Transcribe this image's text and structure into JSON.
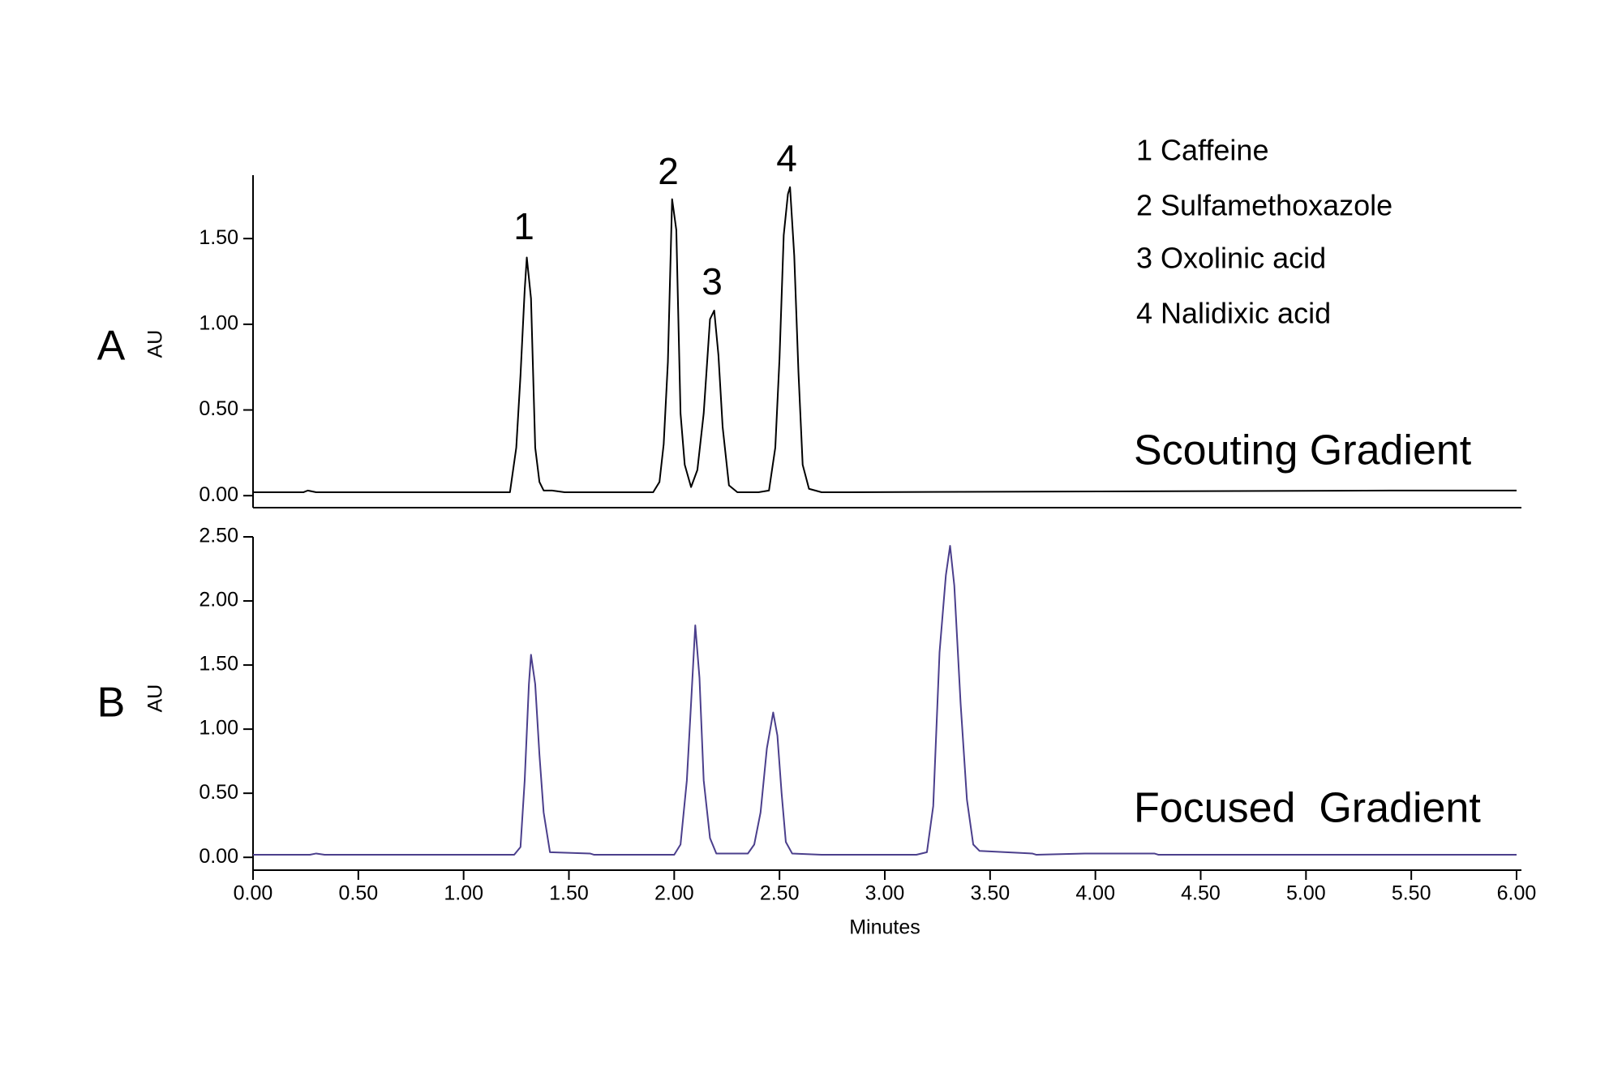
{
  "chart_data": [
    {
      "type": "line",
      "panel_label": "A",
      "ylabel": "AU",
      "annotation": "Scouting Gradient",
      "peak_labels": [
        "1",
        "2",
        "3",
        "4"
      ],
      "legend_items": [
        "1 Caffeine",
        "2 Sulfamethoxazole",
        "3 Oxolinic acid",
        "4 Nalidixic acid"
      ],
      "x": [
        0,
        0.24,
        0.26,
        0.3,
        1.22,
        1.25,
        1.27,
        1.29,
        1.3,
        1.32,
        1.34,
        1.36,
        1.38,
        1.42,
        1.48,
        1.9,
        1.93,
        1.95,
        1.97,
        1.99,
        2.01,
        2.03,
        2.05,
        2.08,
        2.11,
        2.14,
        2.17,
        2.19,
        2.21,
        2.23,
        2.26,
        2.3,
        2.4,
        2.45,
        2.48,
        2.5,
        2.52,
        2.54,
        2.55,
        2.57,
        2.59,
        2.61,
        2.64,
        2.7,
        2.82,
        5.4,
        6.0
      ],
      "series": [
        {
          "color": "#000000",
          "values": [
            0.02,
            0.02,
            0.03,
            0.02,
            0.02,
            0.28,
            0.7,
            1.2,
            1.39,
            1.15,
            0.28,
            0.08,
            0.03,
            0.03,
            0.02,
            0.02,
            0.08,
            0.3,
            0.78,
            1.73,
            1.55,
            0.48,
            0.18,
            0.05,
            0.15,
            0.48,
            1.03,
            1.08,
            0.82,
            0.4,
            0.06,
            0.02,
            0.02,
            0.03,
            0.28,
            0.8,
            1.52,
            1.76,
            1.8,
            1.4,
            0.72,
            0.18,
            0.04,
            0.02,
            0.02,
            0.03,
            0.03
          ]
        }
      ],
      "xlim": [
        0,
        6
      ],
      "ylim": [
        -0.07,
        1.87
      ],
      "yticks": [
        {
          "value": 0,
          "label": "0.00"
        },
        {
          "value": 0.5,
          "label": "0.50"
        },
        {
          "value": 1,
          "label": "1.00"
        },
        {
          "value": 1.5,
          "label": "1.50"
        }
      ]
    },
    {
      "type": "line",
      "panel_label": "B",
      "ylabel": "AU",
      "annotation": "Focused  Gradient",
      "xlabel": "Minutes",
      "x": [
        0,
        0.27,
        0.3,
        0.34,
        1.24,
        1.27,
        1.29,
        1.31,
        1.32,
        1.34,
        1.36,
        1.38,
        1.41,
        1.6,
        1.62,
        2.0,
        2.03,
        2.06,
        2.08,
        2.1,
        2.12,
        2.14,
        2.17,
        2.2,
        2.35,
        2.38,
        2.41,
        2.44,
        2.47,
        2.49,
        2.51,
        2.53,
        2.56,
        2.7,
        3.15,
        3.2,
        3.23,
        3.26,
        3.29,
        3.31,
        3.33,
        3.36,
        3.39,
        3.42,
        3.45,
        3.7,
        3.72,
        3.95,
        4.28,
        4.3,
        6.0
      ],
      "series": [
        {
          "color": "#4b3f8c",
          "values": [
            0.02,
            0.02,
            0.03,
            0.02,
            0.02,
            0.08,
            0.6,
            1.35,
            1.58,
            1.35,
            0.8,
            0.35,
            0.04,
            0.03,
            0.02,
            0.02,
            0.1,
            0.6,
            1.2,
            1.81,
            1.4,
            0.6,
            0.15,
            0.03,
            0.03,
            0.1,
            0.35,
            0.85,
            1.13,
            0.95,
            0.5,
            0.12,
            0.03,
            0.02,
            0.02,
            0.04,
            0.4,
            1.6,
            2.2,
            2.43,
            2.12,
            1.2,
            0.45,
            0.1,
            0.05,
            0.03,
            0.02,
            0.03,
            0.03,
            0.02,
            0.02
          ]
        }
      ],
      "xlim": [
        0,
        6
      ],
      "ylim": [
        -0.1,
        2.5
      ],
      "xticks": [
        {
          "value": 0,
          "label": "0.00"
        },
        {
          "value": 0.5,
          "label": "0.50"
        },
        {
          "value": 1,
          "label": "1.00"
        },
        {
          "value": 1.5,
          "label": "1.50"
        },
        {
          "value": 2,
          "label": "2.00"
        },
        {
          "value": 2.5,
          "label": "2.50"
        },
        {
          "value": 3,
          "label": "3.00"
        },
        {
          "value": 3.5,
          "label": "3.50"
        },
        {
          "value": 4,
          "label": "4.00"
        },
        {
          "value": 4.5,
          "label": "4.50"
        },
        {
          "value": 5,
          "label": "5.00"
        },
        {
          "value": 5.5,
          "label": "5.50"
        },
        {
          "value": 6,
          "label": "6.00"
        }
      ],
      "yticks": [
        {
          "value": 0,
          "label": "0.00"
        },
        {
          "value": 0.5,
          "label": "0.50"
        },
        {
          "value": 1,
          "label": "1.00"
        },
        {
          "value": 1.5,
          "label": "1.50"
        },
        {
          "value": 2,
          "label": "2.00"
        },
        {
          "value": 2.5,
          "label": "2.50"
        }
      ]
    }
  ]
}
